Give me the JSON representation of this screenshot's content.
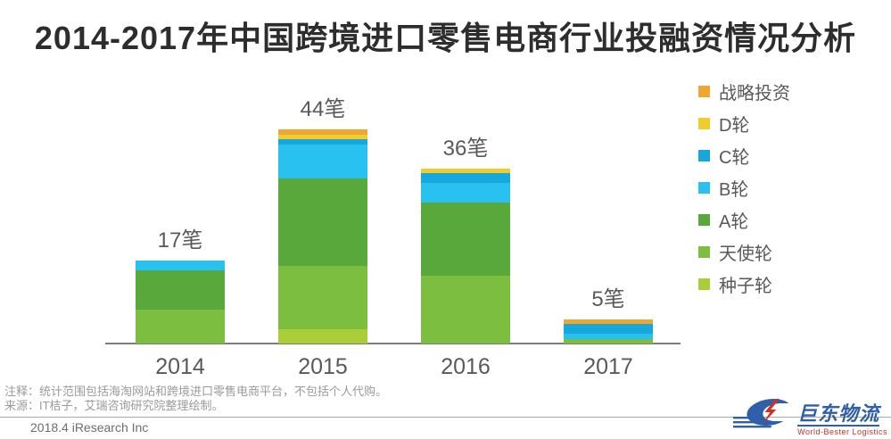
{
  "title": "2014-2017年中国跨境进口零售电商行业投融资情况分析",
  "chart_data": {
    "type": "bar",
    "stacked": true,
    "title": "2014-2017年中国跨境进口零售电商行业投融资情况分析",
    "categories": [
      "2014",
      "2015",
      "2016",
      "2017"
    ],
    "unit": "笔",
    "totals": [
      17,
      44,
      36,
      5
    ],
    "total_labels": [
      "17笔",
      "44笔",
      "36笔",
      "5笔"
    ],
    "series": [
      {
        "name": "种子轮",
        "color": "#a9ce38",
        "values": [
          0,
          3,
          0,
          0
        ]
      },
      {
        "name": "天使轮",
        "color": "#7cbe3f",
        "values": [
          7,
          13,
          14,
          1
        ]
      },
      {
        "name": "A轮",
        "color": "#58a83c",
        "values": [
          8,
          18,
          15,
          0
        ]
      },
      {
        "name": "B轮",
        "color": "#29c1f0",
        "values": [
          2,
          7,
          4,
          1
        ]
      },
      {
        "name": "C轮",
        "color": "#16a8dc",
        "values": [
          0,
          1,
          2,
          2
        ]
      },
      {
        "name": "D轮",
        "color": "#f0cd2b",
        "values": [
          0,
          1,
          1,
          0
        ]
      },
      {
        "name": "战略投资",
        "color": "#f0a632",
        "values": [
          0,
          1,
          0,
          1
        ]
      }
    ],
    "legend": [
      {
        "label": "战略投资",
        "color": "#f0a632"
      },
      {
        "label": "D轮",
        "color": "#f0cd2b"
      },
      {
        "label": "C轮",
        "color": "#16a8dc"
      },
      {
        "label": "B轮",
        "color": "#29c1f0"
      },
      {
        "label": "A轮",
        "color": "#58a83c"
      },
      {
        "label": "天使轮",
        "color": "#7cbe3f"
      },
      {
        "label": "种子轮",
        "color": "#a9ce38"
      }
    ],
    "ylim": [
      0,
      46
    ],
    "grid": false,
    "legend_position": "right",
    "xlabel": "",
    "ylabel": ""
  },
  "footer": {
    "note1": "注释：统计范围包括海淘网站和跨境进口零售电商平台，不包括个人代购。",
    "note2": "来源：IT桔子，艾瑞咨询研究院整理绘制。",
    "credit": "2018.4 iResearch Inc"
  },
  "watermark": {
    "name": "巨东物流",
    "tagline": "World-Bester Logistics"
  }
}
